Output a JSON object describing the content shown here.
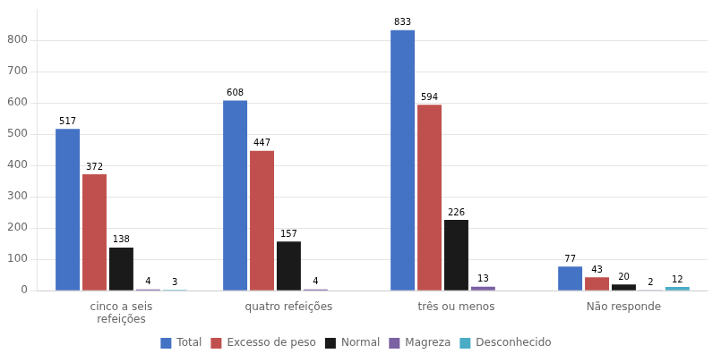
{
  "chart_data": {
    "type": "bar",
    "categories": [
      "cinco a seis\nrefeições",
      "quatro refeições",
      "três ou menos",
      "Não responde"
    ],
    "series": [
      {
        "name": "Total",
        "color": "#4472C4",
        "values": [
          517,
          608,
          833,
          77
        ]
      },
      {
        "name": "Excesso de peso",
        "color": "#C0504D",
        "values": [
          372,
          447,
          594,
          43
        ]
      },
      {
        "name": "Normal",
        "color": "#1A1A1A",
        "values": [
          138,
          157,
          226,
          20
        ]
      },
      {
        "name": "Magreza",
        "color": "#7B60A2",
        "values": [
          4,
          4,
          13,
          2
        ]
      },
      {
        "name": "Desconhecido",
        "color": "#4BACC6",
        "values": [
          3,
          0,
          0,
          12
        ]
      }
    ],
    "ylim": [
      0,
      900
    ],
    "yticks": [
      0,
      100,
      200,
      300,
      400,
      500,
      600,
      700,
      800
    ],
    "grid": true,
    "legend": "bottom",
    "data_labels": true
  }
}
